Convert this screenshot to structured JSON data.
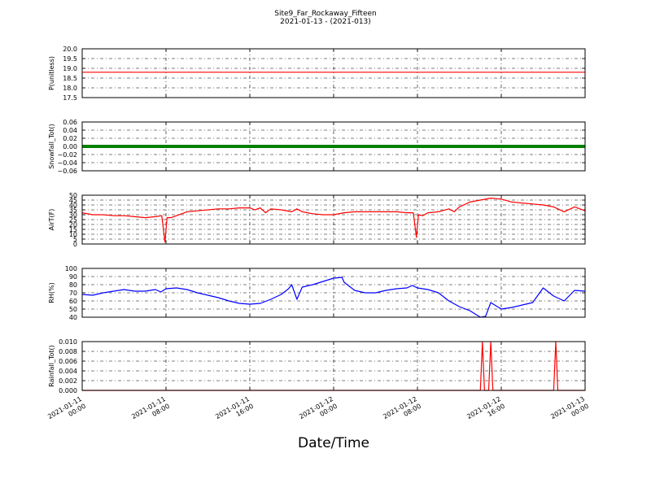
{
  "figure": {
    "title": "Site9_Far_Rockaway_Fifteen",
    "subtitle": "2021-01-13 - (2021-013)",
    "xlabel": "Date/Time"
  },
  "chart_data": [
    {
      "type": "line",
      "ylabel": "P(unitless)",
      "ylim": [
        17.5,
        20.0
      ],
      "yticks": [
        "17.5",
        "18.0",
        "18.5",
        "19.0",
        "19.5",
        "20.0"
      ],
      "color": "#ff0000",
      "grid": true,
      "x": [
        0,
        48
      ],
      "values": [
        18.8,
        18.8
      ]
    },
    {
      "type": "line",
      "ylabel": "Snowfall_Tot()",
      "ylim": [
        -0.06,
        0.06
      ],
      "yticks": [
        "−0.06",
        "−0.04",
        "−0.02",
        "0.00",
        "0.02",
        "0.04",
        "0.06"
      ],
      "color": "#008000",
      "thick": true,
      "grid": true,
      "x": [
        0,
        48
      ],
      "values": [
        0,
        0
      ]
    },
    {
      "type": "line",
      "ylabel": "AirT(F)",
      "ylim": [
        0,
        50
      ],
      "yticks": [
        "0",
        "5",
        "10",
        "15",
        "20",
        "25",
        "30",
        "35",
        "40",
        "45",
        "50"
      ],
      "color": "#ff0000",
      "grid": true,
      "x": [
        0,
        1,
        2,
        3,
        4,
        5,
        6,
        7,
        7.6,
        7.9,
        8.1,
        8.5,
        9,
        10,
        11,
        12,
        13,
        14,
        15,
        16,
        16.5,
        17,
        17.5,
        18,
        19,
        20,
        20.5,
        21,
        22,
        23,
        24,
        25,
        26,
        27,
        28,
        29,
        30,
        31,
        31.6,
        31.9,
        32.1,
        32.5,
        33,
        34,
        35,
        35.5,
        36,
        37,
        38,
        39,
        40,
        41,
        42,
        43,
        44,
        45,
        46,
        47,
        48
      ],
      "values": [
        32,
        30,
        30,
        29,
        29,
        28,
        27,
        28,
        29,
        2,
        27,
        27,
        29,
        33,
        34,
        35,
        36,
        36,
        37,
        37,
        35,
        37,
        32,
        36,
        35,
        33,
        36,
        33,
        31,
        30,
        30,
        32,
        33,
        33,
        33,
        33,
        33,
        32,
        32,
        7,
        30,
        29,
        32,
        33,
        36,
        33,
        38,
        43,
        45,
        47,
        46,
        43,
        42,
        41,
        40,
        38,
        33,
        38,
        34
      ]
    },
    {
      "type": "line",
      "ylabel": "RH(%)",
      "ylim": [
        40,
        100
      ],
      "yticks": [
        "40",
        "50",
        "60",
        "70",
        "80",
        "90",
        "100"
      ],
      "color": "#0000ff",
      "grid": true,
      "x": [
        0,
        1,
        2,
        3,
        4,
        5,
        6,
        7,
        7.5,
        8,
        9,
        10,
        11,
        12,
        13,
        14,
        15,
        16,
        17,
        18,
        19,
        19.7,
        20,
        20.5,
        21,
        22,
        23,
        24,
        24.8,
        25,
        26,
        27,
        28,
        29,
        30,
        31,
        31.5,
        32,
        33,
        34,
        34.5,
        35,
        36,
        37,
        38,
        38.5,
        39,
        40,
        41,
        42,
        43,
        44,
        45,
        46,
        47,
        48
      ],
      "values": [
        68,
        67,
        70,
        72,
        74,
        72,
        72,
        74,
        71,
        75,
        76,
        74,
        70,
        67,
        64,
        60,
        57,
        56,
        57,
        62,
        68,
        75,
        80,
        62,
        77,
        80,
        84,
        88,
        89,
        83,
        73,
        70,
        70,
        73,
        75,
        76,
        79,
        76,
        74,
        70,
        65,
        60,
        53,
        48,
        40,
        41,
        58,
        50,
        52,
        55,
        58,
        76,
        66,
        60,
        73,
        72
      ]
    },
    {
      "type": "line",
      "ylabel": "Rainfall_Tot()",
      "ylim": [
        0,
        0.01
      ],
      "yticks": [
        "0.000",
        "0.002",
        "0.004",
        "0.006",
        "0.008",
        "0.010"
      ],
      "color": "#ff0000",
      "grid": true,
      "x": [
        0,
        38,
        38.2,
        38.4,
        38.8,
        39,
        39.2,
        45,
        45.2,
        45.4,
        48
      ],
      "values": [
        0,
        0,
        0.01,
        0,
        0,
        0.01,
        0,
        0,
        0.01,
        0,
        0
      ]
    }
  ],
  "x_axis": {
    "xlim": [
      0,
      48
    ],
    "ticks": [
      {
        "v": 0,
        "l1": "2021-01-11",
        "l2": "00:00"
      },
      {
        "v": 8,
        "l1": "2021-01-11",
        "l2": "08:00"
      },
      {
        "v": 16,
        "l1": "2021-01-11",
        "l2": "16:00"
      },
      {
        "v": 24,
        "l1": "2021-01-12",
        "l2": "00:00"
      },
      {
        "v": 32,
        "l1": "2021-01-12",
        "l2": "08:00"
      },
      {
        "v": 40,
        "l1": "2021-01-12",
        "l2": "16:00"
      },
      {
        "v": 48,
        "l1": "2021-01-13",
        "l2": "00:00"
      }
    ]
  }
}
